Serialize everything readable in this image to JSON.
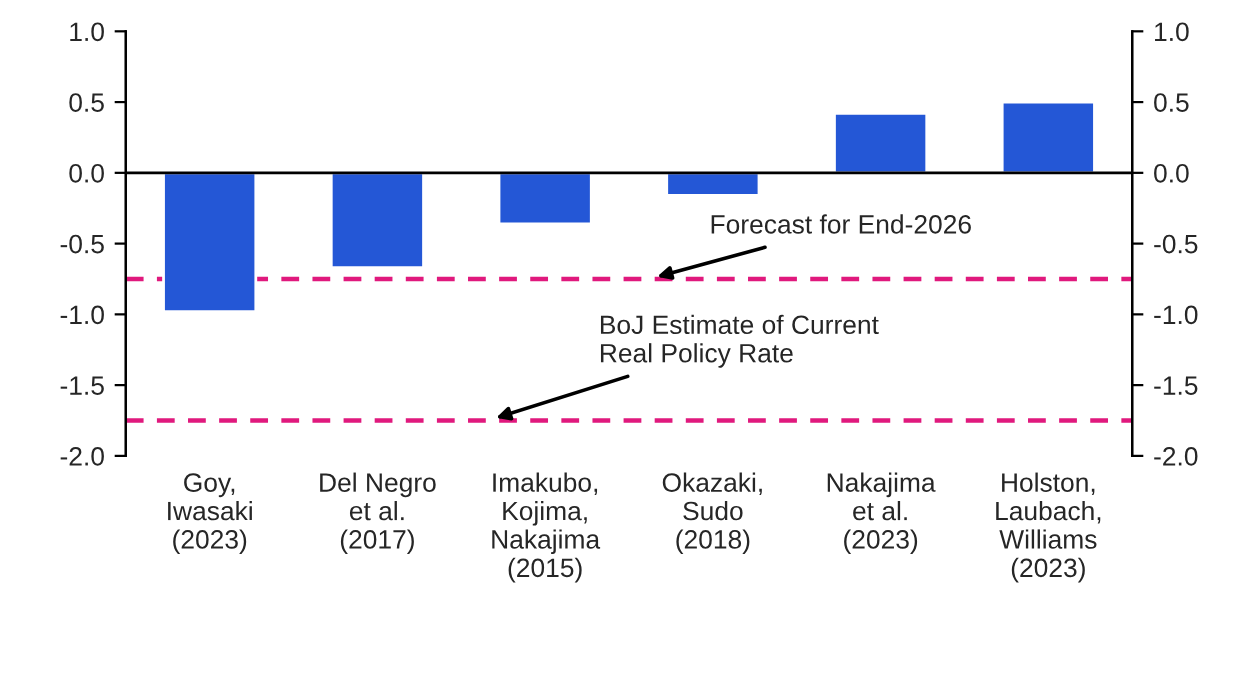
{
  "chart_data": {
    "type": "bar",
    "categories": [
      "Goy,\nIwasaki\n(2023)",
      "Del Negro\net al.\n(2017)",
      "Imakubo,\nKojima,\nNakajima\n(2015)",
      "Okazaki,\nSudo\n(2018)",
      "Nakajima\net al.\n(2023)",
      "Holston,\nLaubach,\nWilliams\n(2023)"
    ],
    "values": [
      -0.98,
      -0.67,
      -0.36,
      -0.16,
      0.42,
      0.5
    ],
    "color": "#2457d6",
    "ylim": [
      -2,
      1
    ],
    "yticks": [
      {
        "value": -2,
        "label": "-2.0"
      },
      {
        "value": -1.5,
        "label": "-1.5"
      },
      {
        "value": -1,
        "label": "-1.0"
      },
      {
        "value": -0.5,
        "label": "-0.5"
      },
      {
        "value": 0,
        "label": "0.0"
      },
      {
        "value": 0.5,
        "label": "0.5"
      },
      {
        "value": 1,
        "label": "1.0"
      }
    ],
    "y2lim": [
      -2,
      1
    ],
    "y2ticks": [
      {
        "value": -2,
        "label": "-2.0"
      },
      {
        "value": -1.5,
        "label": "-1.5"
      },
      {
        "value": -1,
        "label": "-1.0"
      },
      {
        "value": -0.5,
        "label": "-0.5"
      },
      {
        "value": 0,
        "label": "0.0"
      },
      {
        "value": 0.5,
        "label": "0.5"
      },
      {
        "value": 1,
        "label": "1.0"
      }
    ],
    "ref_lines": [
      {
        "axis": "y",
        "value": -0.75,
        "label": "Forecast for End-2026",
        "color": "#e0197d",
        "line_style": "dashed"
      },
      {
        "axis": "y",
        "value": -1.75,
        "label": "BoJ Estimate of Current\nReal Policy Rate",
        "color": "#e0197d",
        "line_style": "dashed"
      },
      {
        "axis": "y",
        "value": 0,
        "color": "#000000",
        "line_style": "solid"
      }
    ],
    "grid": false,
    "legend": false
  }
}
